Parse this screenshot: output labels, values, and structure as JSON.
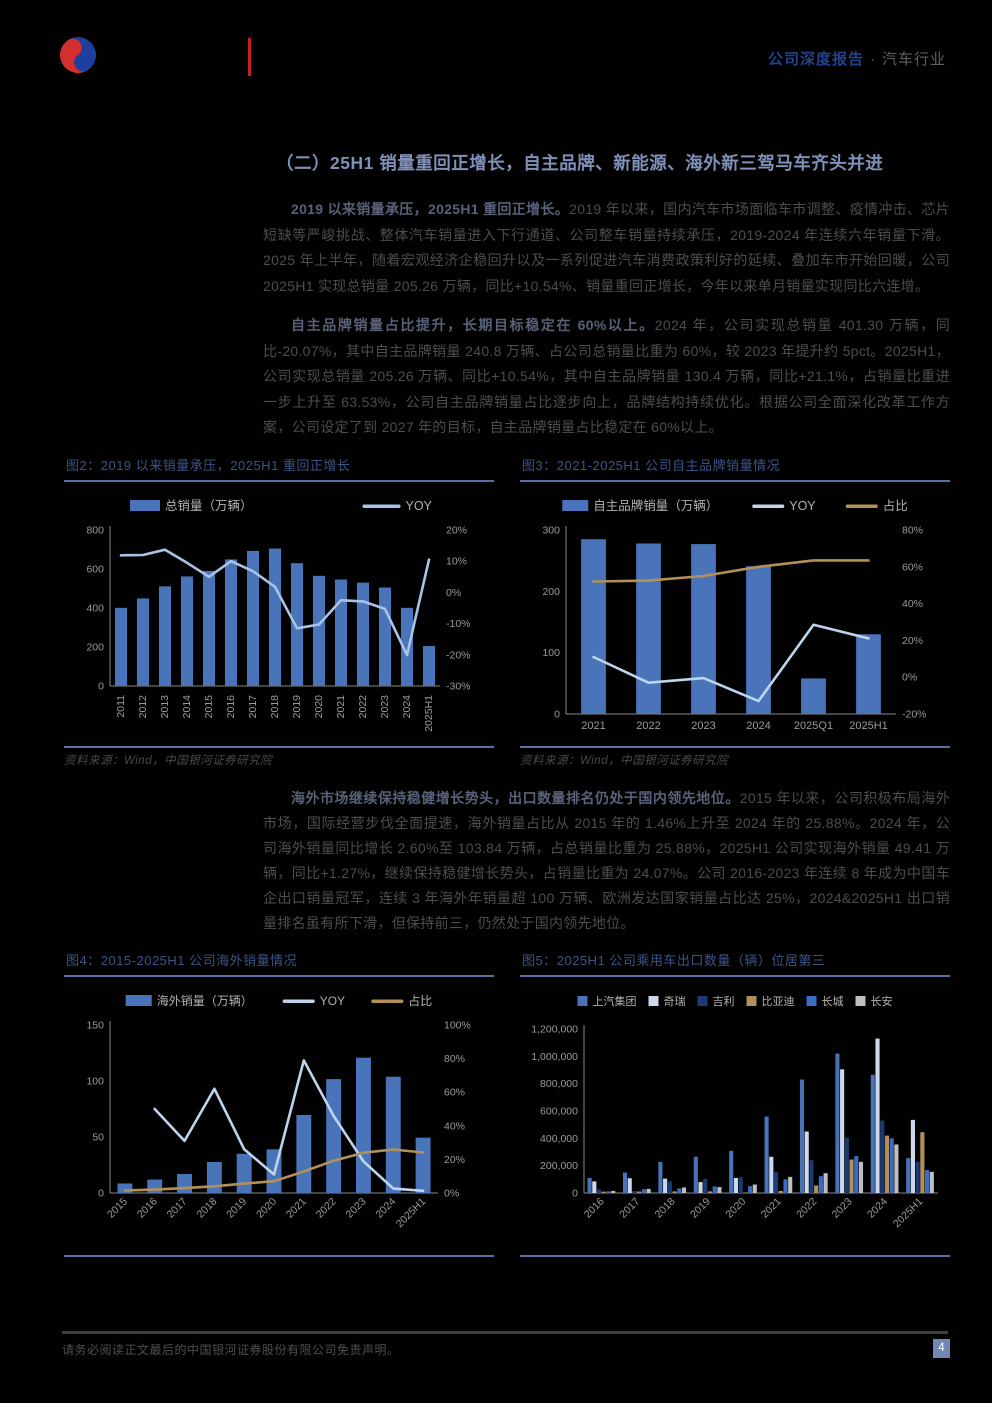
{
  "header": {
    "report_type": "公司深度报告",
    "dot": "·",
    "industry": "汽车行业"
  },
  "section": {
    "heading": "（二）25H1 销量重回正增长，自主品牌、新能源、海外新三驾马车齐头并进"
  },
  "paragraphs": [
    {
      "lead": "2019 以来销量承压，2025H1 重回正增长。",
      "body": "2019 年以来，国内汽车市场面临车市调整、疫情冲击、芯片短缺等严峻挑战、整体汽车销量进入下行通道、公司整车销量持续承压，2019-2024 年连续六年销量下滑。2025 年上半年，随着宏观经济企稳回升以及一系列促进汽车消费政策利好的延续、叠加车市开始回暖，公司 2025H1 实现总销量 205.26 万辆，同比+10.54%、销量重回正增长，今年以来单月销量实现同比六连增。"
    },
    {
      "lead": "自主品牌销量占比提升，长期目标稳定在 60%以上。",
      "body": "2024 年，公司实现总销量 401.30 万辆，同比-20.07%，其中自主品牌销量 240.8 万辆、占公司总销量比重为 60%，较 2023 年提升约 5pct。2025H1，公司实现总销量 205.26 万辆、同比+10.54%，其中自主品牌销量 130.4 万辆，同比+21.1%，占销量比重进一步上升至 63.53%，公司自主品牌销量占比逐步向上，品牌结构持续优化。根据公司全面深化改革工作方案，公司设定了到 2027 年的目标，自主品牌销量占比稳定在 60%以上。"
    },
    {
      "lead": "海外市场继续保持稳健增长势头，出口数量排名仍处于国内领先地位。",
      "body": "2015 年以来，公司积极布局海外市场，国际经营步伐全面提速，海外销量占比从 2015 年的 1.46%上升至 2024 年的 25.88%。2024 年，公司海外销量同比增长 2.60%至 103.84 万辆，占总销量比重为 25.88%，2025H1 公司实现海外销量 49.41 万辆，同比+1.27%，继续保持稳健增长势头，占销量比重为 24.07%。公司 2016-2023 年连续 8 年成为中国车企出口销量冠军，连续 3 年海外年销量超 100 万辆、欧洲发达国家销量占比达 25%，2024&2025H1 出口销量排名虽有所下滑，但保持前三，仍然处于国内领先地位。"
    }
  ],
  "figures": [
    {
      "caption": "图2：2019 以来销量承压，2025H1 重回正增长",
      "source": "资料来源：Wind，中国银河证券研究院"
    },
    {
      "caption": "图3：2021-2025H1 公司自主品牌销量情况",
      "source": "资料来源：Wind，中国银河证券研究院"
    },
    {
      "caption": "图4：2015-2025H1 公司海外销量情况",
      "source": ""
    },
    {
      "caption": "图5：2025H1 公司乘用车出口数量（辆）位居第三",
      "source": ""
    }
  ],
  "footer": {
    "disclaimer": "请务必阅读正文最后的中国银河证券股份有限公司免责声明。",
    "page_number": "4"
  },
  "colors": {
    "page_background": "#010101",
    "heading_blue": "#8090b8",
    "caption_blue": "#3e5286",
    "rule_blue": "#5b6fa5",
    "brand_blue": "#24418c",
    "brand_red": "#c32222",
    "bar_blue": "#4a74b9",
    "line_lightblue": "#bdd4ec",
    "line_tan": "#b3905a",
    "page_badge": "#7187b7"
  },
  "chart_data": [
    {
      "type": "bar",
      "title": "图2：2019 以来销量承压，2025H1 重回正增长",
      "categories": [
        "2011",
        "2012",
        "2013",
        "2014",
        "2015",
        "2016",
        "2017",
        "2018",
        "2019",
        "2020",
        "2021",
        "2022",
        "2023",
        "2024",
        "2025H1"
      ],
      "bar_series": [
        {
          "name": "总销量（万辆）",
          "color": "#4a74b9",
          "values": [
            401,
            449,
            511,
            562,
            590,
            649,
            693,
            705,
            630,
            565,
            546,
            530,
            505,
            401,
            205
          ]
        }
      ],
      "line_series": [
        {
          "name": "YOY",
          "color": "#a9c3e6",
          "values": [
            11.9,
            12,
            13.7,
            9.5,
            5,
            10,
            6.8,
            1.8,
            -11.5,
            -10.3,
            -2.5,
            -2.9,
            -5.3,
            -20.1,
            10.5
          ]
        }
      ],
      "left_axis": {
        "min": 0,
        "max": 800,
        "step": 200
      },
      "right_axis": {
        "min": -30,
        "max": 20,
        "step": 10,
        "suffix": "%"
      },
      "legend_position": "top",
      "grid": false
    },
    {
      "type": "bar",
      "title": "图3：2021-2025H1 公司自主品牌销量情况",
      "categories": [
        "2021",
        "2022",
        "2023",
        "2024",
        "2025Q1",
        "2025H1"
      ],
      "bar_series": [
        {
          "name": "自主品牌销量（万辆）",
          "color": "#4a74b9",
          "values": [
            285,
            278,
            277,
            241,
            58,
            130
          ]
        }
      ],
      "line_series": [
        {
          "name": "YOY",
          "color": "#bdd4ec",
          "values": [
            11,
            -3,
            -0.5,
            -13,
            28.5,
            21.1
          ]
        },
        {
          "name": "占比",
          "color": "#b3905a",
          "values": [
            52,
            52.5,
            55,
            60,
            63.5,
            63.5
          ]
        }
      ],
      "left_axis": {
        "min": 0,
        "max": 300,
        "step": 100
      },
      "right_axis": {
        "min": -20,
        "max": 80,
        "step": 20,
        "suffix": "%"
      },
      "legend_position": "top",
      "grid": false
    },
    {
      "type": "bar",
      "title": "图4：2015-2025H1 公司海外销量情况",
      "categories": [
        "2015",
        "2016",
        "2017",
        "2018",
        "2019",
        "2020",
        "2021",
        "2022",
        "2023",
        "2024",
        "2025H1"
      ],
      "bar_series": [
        {
          "name": "海外销量（万辆）",
          "color": "#4a74b9",
          "values": [
            8.5,
            12,
            17,
            27.7,
            35,
            39,
            69.7,
            101.7,
            120.8,
            103.8,
            49.4
          ]
        }
      ],
      "line_series": [
        {
          "name": "YOY",
          "color": "#bdd4ec",
          "values": [
            null,
            50,
            31,
            62,
            26,
            11,
            78.9,
            45.9,
            18.8,
            2.6,
            1.3
          ]
        },
        {
          "name": "占比",
          "color": "#b3905a",
          "values": [
            1.5,
            2,
            2.9,
            4,
            5.6,
            7,
            12.8,
            19.2,
            24,
            25.9,
            24.1
          ]
        }
      ],
      "left_axis": {
        "min": 0,
        "max": 150,
        "step": 50
      },
      "right_axis": {
        "min": 0,
        "max": 100,
        "step": 20,
        "suffix": "%"
      },
      "legend_position": "top",
      "grid": false
    },
    {
      "type": "bar",
      "title": "图5：2025H1 公司乘用车出口数量（辆）位居第三",
      "categories": [
        "2016",
        "2017",
        "2018",
        "2019",
        "2020",
        "2021",
        "2022",
        "2023",
        "2024",
        "2025H1"
      ],
      "bar_series": [
        {
          "name": "上汽集团",
          "color": "#4a72b8",
          "values": [
            110000,
            150000,
            228000,
            265000,
            308000,
            560000,
            830000,
            1020000,
            865000,
            255000
          ]
        },
        {
          "name": "奇瑞",
          "color": "#ccd8ec",
          "values": [
            85000,
            108000,
            105000,
            80000,
            110000,
            265000,
            450000,
            905000,
            1130000,
            535000
          ]
        },
        {
          "name": "吉利",
          "color": "#1d3a75",
          "values": [
            25000,
            15000,
            85000,
            103000,
            115000,
            155000,
            240000,
            405000,
            530000,
            228000
          ]
        },
        {
          "name": "比亚迪",
          "color": "#b3905a",
          "values": [
            10000,
            11000,
            12000,
            12000,
            4000,
            15000,
            55000,
            245000,
            420000,
            445000
          ]
        },
        {
          "name": "长城",
          "color": "#3d6cc4",
          "values": [
            12000,
            28000,
            33000,
            48000,
            50000,
            100000,
            123000,
            270000,
            400000,
            168000
          ]
        },
        {
          "name": "长安",
          "color": "#bfbfbf",
          "values": [
            15000,
            30000,
            40000,
            43000,
            62000,
            118000,
            145000,
            228000,
            355000,
            155000
          ]
        }
      ],
      "left_axis": {
        "min": 0,
        "max": 1200000,
        "step": 200000,
        "thousands": true
      },
      "legend_position": "top",
      "grid": false
    }
  ]
}
